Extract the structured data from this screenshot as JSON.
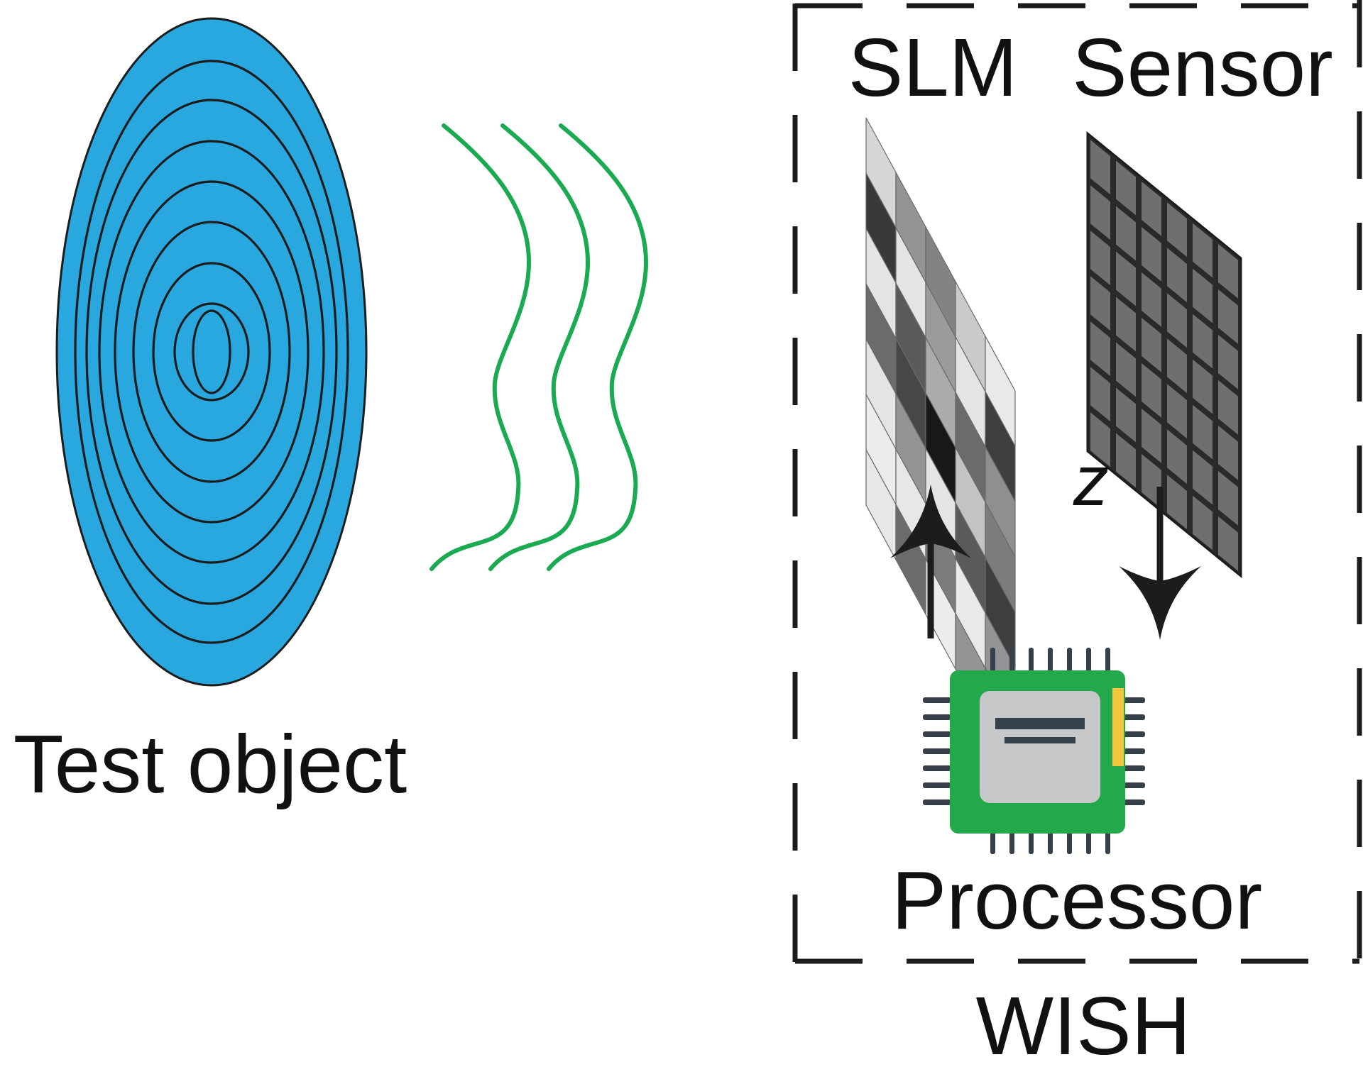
{
  "labels": {
    "test_object": "Test object",
    "slm": "SLM",
    "sensor": "Sensor",
    "z": "z",
    "processor": "Processor",
    "wish": "WISH"
  },
  "slm_pattern": [
    [
      0.9,
      0.62,
      0.55,
      0.85,
      0.98
    ],
    [
      0.24,
      0.96,
      0.65,
      0.96,
      0.26
    ],
    [
      0.96,
      0.38,
      0.72,
      0.45,
      0.6
    ],
    [
      0.45,
      0.3,
      0.1,
      0.82,
      0.52
    ],
    [
      0.96,
      0.62,
      0.96,
      0.38,
      0.26
    ],
    [
      0.99,
      0.97,
      0.52,
      0.98,
      0.62
    ],
    [
      0.97,
      0.45,
      0.99,
      0.62,
      0.97
    ]
  ],
  "sensor_grid": {
    "rows": 7,
    "cols": 6
  },
  "colors": {
    "object_fill": "#29a8e0",
    "ring_stroke": "#1c1c1c",
    "wave": "#1aaa52",
    "outline": "#1c1c1c",
    "sensor_fill": "#6f6f70",
    "chip_board": "#23a84b",
    "chip_core": "#c6c7c9",
    "chip_pins": "#36404a",
    "chip_accent": "#f5c53a",
    "arrow": "#1c1c1c"
  },
  "icons": [
    "test-object-rings",
    "wavefront",
    "slm-panel",
    "sensor-panel",
    "processor-chip-icon",
    "up-arrow-icon",
    "down-arrow-icon"
  ]
}
